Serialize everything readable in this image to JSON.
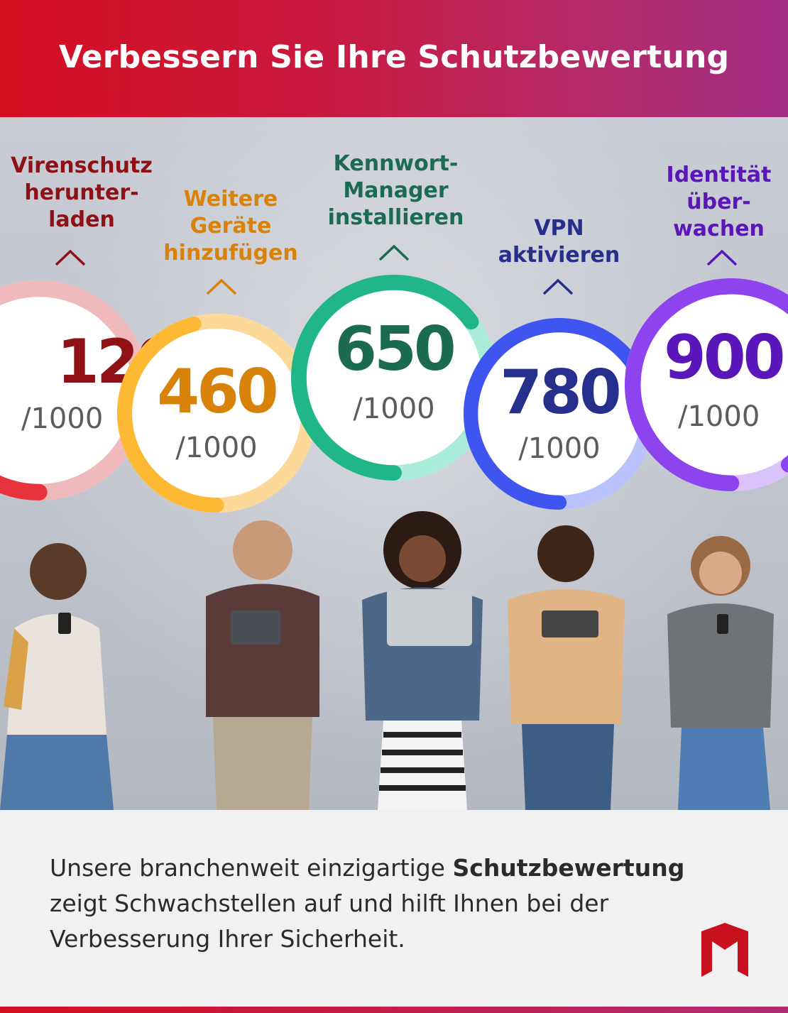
{
  "header": {
    "title": "Verbessern Sie Ihre Schutzbewertung"
  },
  "steps": [
    {
      "label": "Virenschutz\nherunter-\nladen",
      "score": "120",
      "max": "/1000",
      "color": "#8f1116",
      "ring": "#f0b9bc",
      "arc": "#e8323c",
      "progress": 0.12
    },
    {
      "label": "Weitere\nGeräte\nhinzufügen",
      "score": "460",
      "max": "/1000",
      "color": "#d9820a",
      "ring": "#fcd999",
      "arc": "#fdb834",
      "progress": 0.46
    },
    {
      "label": "Kennwort-\nManager\ninstallieren",
      "score": "650",
      "max": "/1000",
      "color": "#1b6a52",
      "ring": "#a9ecd9",
      "arc": "#21b68a",
      "progress": 0.65
    },
    {
      "label": "VPN\naktivieren",
      "score": "780",
      "max": "/1000",
      "color": "#262f8c",
      "ring": "#b9c3fb",
      "arc": "#3f55ef",
      "progress": 0.78
    },
    {
      "label": "Identität\nüber-\nwachen",
      "score": "900",
      "max": "/1000",
      "color": "#5a16b8",
      "ring": "#d9c3fa",
      "arc": "#8d43ee",
      "progress": 0.9
    }
  ],
  "footer": {
    "text_before": "Unsere branchenweit einzigartige ",
    "text_bold": "Schutzbewertung",
    "text_after": " zeigt Schwachstellen auf und hilft Ihnen bei der Verbesserung Ihrer Sicherheit."
  },
  "icons": {
    "logo": "mcafee-shield-logo",
    "chevron": "chevron-up-icon"
  }
}
